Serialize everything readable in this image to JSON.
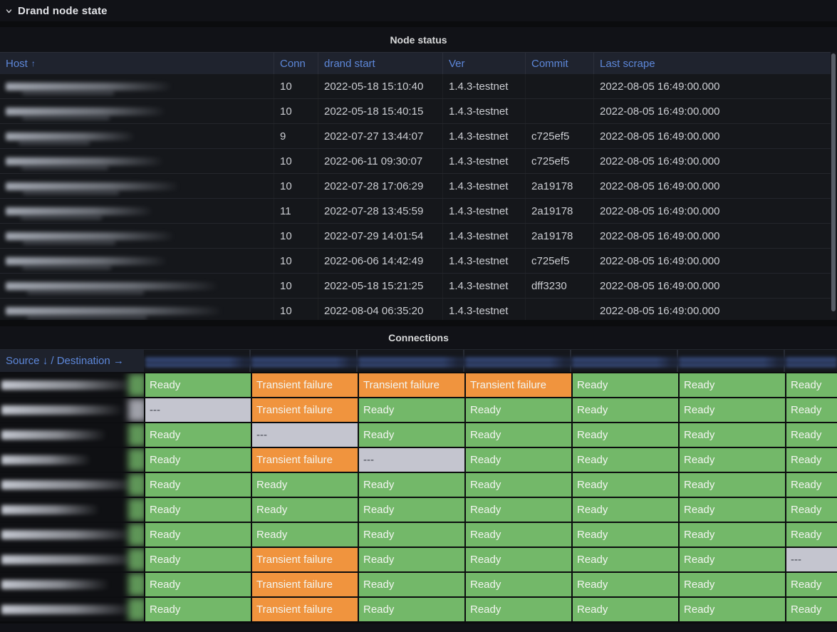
{
  "row_header": {
    "title": "Drand node state"
  },
  "node_status": {
    "title": "Node status",
    "sort_indicator": "↑",
    "columns": [
      "Host",
      "Conn",
      "drand start",
      "Ver",
      "Commit",
      "Last scrape"
    ],
    "hosts_redacted": true,
    "rows": [
      {
        "host_w": 234,
        "conn": "10",
        "start": "2022-05-18 15:10:40",
        "ver": "1.4.3-testnet",
        "commit": "",
        "scrape": "2022-08-05 16:49:00.000"
      },
      {
        "host_w": 225,
        "conn": "10",
        "start": "2022-05-18 15:40:15",
        "ver": "1.4.3-testnet",
        "commit": "",
        "scrape": "2022-08-05 16:49:00.000"
      },
      {
        "host_w": 182,
        "conn": "9",
        "start": "2022-07-27 13:44:07",
        "ver": "1.4.3-testnet",
        "commit": "c725ef5",
        "scrape": "2022-08-05 16:49:00.000"
      },
      {
        "host_w": 222,
        "conn": "10",
        "start": "2022-06-11 09:30:07",
        "ver": "1.4.3-testnet",
        "commit": "c725ef5",
        "scrape": "2022-08-05 16:49:00.000"
      },
      {
        "host_w": 244,
        "conn": "10",
        "start": "2022-07-28 17:06:29",
        "ver": "1.4.3-testnet",
        "commit": "2a19178",
        "scrape": "2022-08-05 16:49:00.000"
      },
      {
        "host_w": 207,
        "conn": "11",
        "start": "2022-07-28 13:45:59",
        "ver": "1.4.3-testnet",
        "commit": "2a19178",
        "scrape": "2022-08-05 16:49:00.000"
      },
      {
        "host_w": 237,
        "conn": "10",
        "start": "2022-07-29 14:01:54",
        "ver": "1.4.3-testnet",
        "commit": "2a19178",
        "scrape": "2022-08-05 16:49:00.000"
      },
      {
        "host_w": 227,
        "conn": "10",
        "start": "2022-06-06 14:42:49",
        "ver": "1.4.3-testnet",
        "commit": "c725ef5",
        "scrape": "2022-08-05 16:49:00.000"
      },
      {
        "host_w": 299,
        "conn": "10",
        "start": "2022-05-18 15:21:25",
        "ver": "1.4.3-testnet",
        "commit": "dff3230",
        "scrape": "2022-08-05 16:49:00.000"
      },
      {
        "host_w": 304,
        "conn": "10",
        "start": "2022-08-04 06:35:20",
        "ver": "1.4.3-testnet",
        "commit": "",
        "scrape": "2022-08-05 16:49:00.000"
      }
    ]
  },
  "connections": {
    "title": "Connections",
    "corner_label": "Source ↓ / Destination →",
    "destinations_redacted": true,
    "sources_redacted": true,
    "cell_labels": {
      "ready": "Ready",
      "tf": "Transient failure",
      "none": "---"
    },
    "colors": {
      "ready": "#73b869",
      "tf": "#f0943e",
      "none": "#c4c5cf",
      "none_text": "#42454f"
    },
    "rows": [
      {
        "source_w": 190,
        "cells": [
          "ready",
          "tf",
          "tf",
          "tf",
          "ready",
          "ready",
          "ready"
        ]
      },
      {
        "source_w": 172,
        "cells": [
          "none",
          "tf",
          "ready",
          "ready",
          "ready",
          "ready",
          "ready"
        ]
      },
      {
        "source_w": 148,
        "cells": [
          "ready",
          "none",
          "ready",
          "ready",
          "ready",
          "ready",
          "ready"
        ]
      },
      {
        "source_w": 126,
        "cells": [
          "ready",
          "tf",
          "none",
          "ready",
          "ready",
          "ready",
          "ready"
        ]
      },
      {
        "source_w": 193,
        "cells": [
          "ready",
          "ready",
          "ready",
          "ready",
          "ready",
          "ready",
          "ready"
        ]
      },
      {
        "source_w": 138,
        "cells": [
          "ready",
          "ready",
          "ready",
          "ready",
          "ready",
          "ready",
          "ready"
        ]
      },
      {
        "source_w": 188,
        "cells": [
          "ready",
          "ready",
          "ready",
          "ready",
          "ready",
          "ready",
          "ready"
        ]
      },
      {
        "source_w": 193,
        "cells": [
          "ready",
          "tf",
          "ready",
          "ready",
          "ready",
          "ready",
          "none"
        ]
      },
      {
        "source_w": 152,
        "cells": [
          "ready",
          "tf",
          "ready",
          "ready",
          "ready",
          "ready",
          "ready"
        ]
      },
      {
        "source_w": 188,
        "cells": [
          "ready",
          "tf",
          "ready",
          "ready",
          "ready",
          "ready",
          "ready"
        ]
      }
    ]
  }
}
